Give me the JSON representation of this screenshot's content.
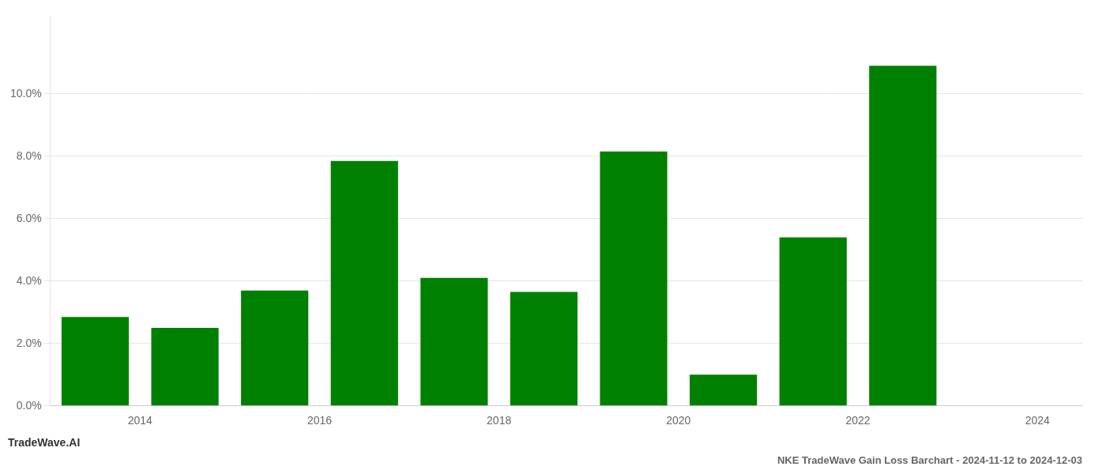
{
  "chart_data": {
    "type": "bar",
    "title": "NKE TradeWave Gain Loss Barchart - 2024-11-12 to 2024-12-03",
    "annotations": [
      "TradeWave.AI"
    ],
    "x": [
      2014,
      2015,
      2016,
      2017,
      2018,
      2019,
      2020,
      2021,
      2022,
      2023
    ],
    "values": [
      0.0285,
      0.025,
      0.037,
      0.0785,
      0.041,
      0.0365,
      0.0815,
      0.01,
      0.054,
      0.109
    ],
    "color": "#008000",
    "xlim": [
      2013.5,
      2025.0
    ],
    "xticks": [
      {
        "value": 2014.5,
        "label": "2014"
      },
      {
        "value": 2016.5,
        "label": "2016"
      },
      {
        "value": 2018.5,
        "label": "2018"
      },
      {
        "value": 2020.5,
        "label": "2020"
      },
      {
        "value": 2022.5,
        "label": "2022"
      },
      {
        "value": 2024.5,
        "label": "2024"
      }
    ],
    "ylim": [
      0,
      0.125
    ],
    "yticks": [
      {
        "value": 0.0,
        "label": "0.0%"
      },
      {
        "value": 0.02,
        "label": "2.0%"
      },
      {
        "value": 0.04,
        "label": "4.0%"
      },
      {
        "value": 0.06,
        "label": "6.0%"
      },
      {
        "value": 0.08,
        "label": "8.0%"
      },
      {
        "value": 0.1,
        "label": "10.0%"
      }
    ],
    "grid": true
  }
}
